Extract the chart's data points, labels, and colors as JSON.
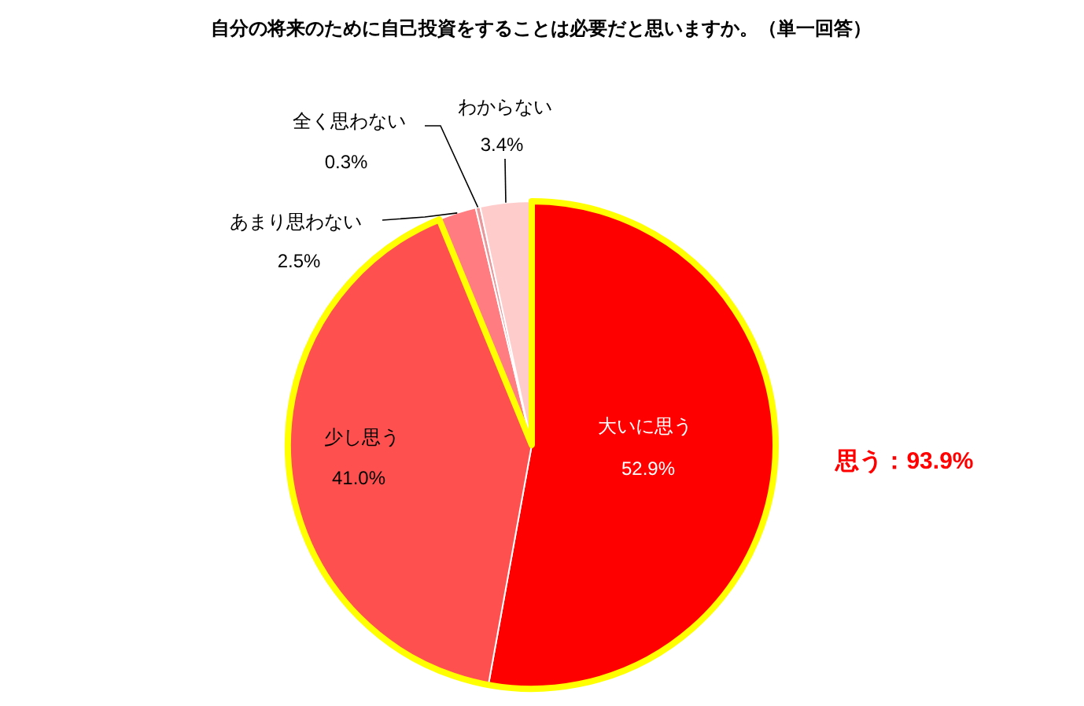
{
  "chart_data": {
    "type": "pie",
    "title": "自分の将来のために自己投資をすることは必要だと思いますか。（単一回答）",
    "categories": [
      "大いに思う",
      "少し思う",
      "あまり思わない",
      "全く思わない",
      "わからない"
    ],
    "values": [
      52.9,
      41.0,
      2.5,
      0.3,
      3.4
    ],
    "value_labels": [
      "52.9%",
      "41.0%",
      "2.5%",
      "0.3%",
      "3.4%"
    ],
    "colors": [
      "#ff0000",
      "#ff5050",
      "#ff7c80",
      "#e8989b",
      "#ffcccc"
    ],
    "annotations": [
      "思う：93.9%"
    ]
  }
}
